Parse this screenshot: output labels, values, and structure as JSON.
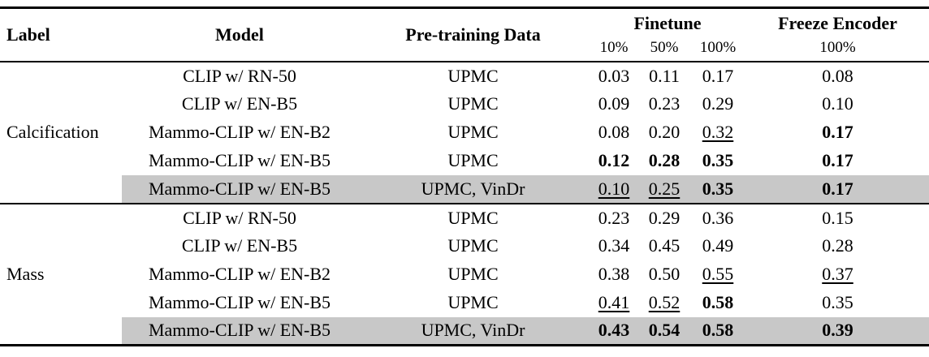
{
  "table": {
    "header": {
      "label": "Label",
      "model": "Model",
      "pretraining_data": "Pre-training Data",
      "finetune": "Finetune",
      "freeze_encoder": "Freeze Encoder",
      "finetune_fractions": {
        "f10": "10%",
        "f50": "50%",
        "f100": "100%"
      },
      "freeze_fraction": "100%"
    },
    "highlight_color": "#c8c8c8",
    "groups": [
      {
        "label": "Calcification",
        "rows": [
          {
            "model": "CLIP w/ RN-50",
            "pretrain": "UPMC",
            "f10": {
              "text": "0.03",
              "style": "normal"
            },
            "f50": {
              "text": "0.11",
              "style": "normal"
            },
            "f100": {
              "text": "0.17",
              "style": "normal"
            },
            "freeze": {
              "text": "0.08",
              "style": "normal"
            }
          },
          {
            "model": "CLIP w/ EN-B5",
            "pretrain": "UPMC",
            "f10": {
              "text": "0.09",
              "style": "normal"
            },
            "f50": {
              "text": "0.23",
              "style": "normal"
            },
            "f100": {
              "text": "0.29",
              "style": "normal"
            },
            "freeze": {
              "text": "0.10",
              "style": "normal"
            }
          },
          {
            "model": "Mammo-CLIP w/ EN-B2",
            "pretrain": "UPMC",
            "f10": {
              "text": "0.08",
              "style": "normal"
            },
            "f50": {
              "text": "0.20",
              "style": "normal"
            },
            "f100": {
              "text": "0.32",
              "style": "underline"
            },
            "freeze": {
              "text": "0.17",
              "style": "bold"
            }
          },
          {
            "model": "Mammo-CLIP w/ EN-B5",
            "pretrain": "UPMC",
            "f10": {
              "text": "0.12",
              "style": "bold"
            },
            "f50": {
              "text": "0.28",
              "style": "bold"
            },
            "f100": {
              "text": "0.35",
              "style": "bold"
            },
            "freeze": {
              "text": "0.17",
              "style": "bold"
            }
          },
          {
            "model": "Mammo-CLIP w/ EN-B5",
            "pretrain": "UPMC, VinDr",
            "row_class": "highlight",
            "f10": {
              "text": "0.10",
              "style": "underline"
            },
            "f50": {
              "text": "0.25",
              "style": "underline"
            },
            "f100": {
              "text": "0.35",
              "style": "bold"
            },
            "freeze": {
              "text": "0.17",
              "style": "bold"
            }
          }
        ]
      },
      {
        "label": "Mass",
        "rows": [
          {
            "model": "CLIP w/ RN-50",
            "pretrain": "UPMC",
            "f10": {
              "text": "0.23",
              "style": "normal"
            },
            "f50": {
              "text": "0.29",
              "style": "normal"
            },
            "f100": {
              "text": "0.36",
              "style": "normal"
            },
            "freeze": {
              "text": "0.15",
              "style": "normal"
            }
          },
          {
            "model": "CLIP w/ EN-B5",
            "pretrain": "UPMC",
            "f10": {
              "text": "0.34",
              "style": "normal"
            },
            "f50": {
              "text": "0.45",
              "style": "normal"
            },
            "f100": {
              "text": "0.49",
              "style": "normal"
            },
            "freeze": {
              "text": "0.28",
              "style": "normal"
            }
          },
          {
            "model": "Mammo-CLIP w/ EN-B2",
            "pretrain": "UPMC",
            "f10": {
              "text": "0.38",
              "style": "normal"
            },
            "f50": {
              "text": "0.50",
              "style": "normal"
            },
            "f100": {
              "text": "0.55",
              "style": "underline"
            },
            "freeze": {
              "text": "0.37",
              "style": "underline"
            }
          },
          {
            "model": "Mammo-CLIP w/ EN-B5",
            "pretrain": "UPMC",
            "f10": {
              "text": "0.41",
              "style": "underline"
            },
            "f50": {
              "text": "0.52",
              "style": "underline"
            },
            "f100": {
              "text": "0.58",
              "style": "bold"
            },
            "freeze": {
              "text": "0.35",
              "style": "normal"
            }
          },
          {
            "model": "Mammo-CLIP w/ EN-B5",
            "pretrain": "UPMC, VinDr",
            "row_class": "highlight",
            "f10": {
              "text": "0.43",
              "style": "bold"
            },
            "f50": {
              "text": "0.54",
              "style": "bold"
            },
            "f100": {
              "text": "0.58",
              "style": "bold"
            },
            "freeze": {
              "text": "0.39",
              "style": "bold"
            }
          }
        ]
      }
    ]
  }
}
